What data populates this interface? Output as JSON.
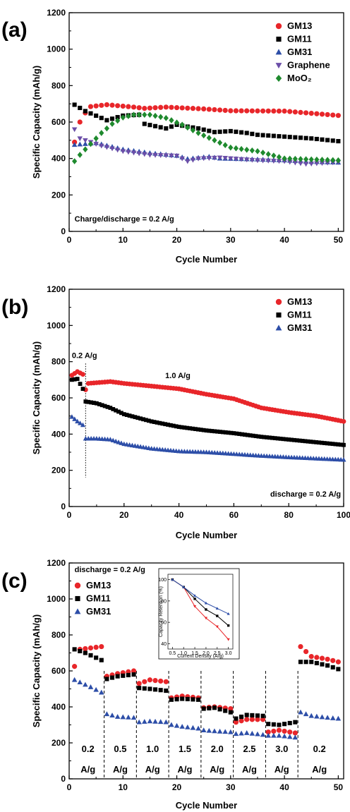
{
  "chart_data": [
    {
      "panel_label": "(a)",
      "type": "scatter",
      "xlabel": "Cycle Number",
      "ylabel": "Specific Capacity (mAh/g)",
      "xlim": [
        0,
        51
      ],
      "ylim": [
        0,
        1200
      ],
      "xticks": [
        0,
        10,
        20,
        30,
        40,
        50
      ],
      "yticks": [
        0,
        200,
        400,
        600,
        800,
        1000,
        1200
      ],
      "legend_position": "top-right",
      "annotations": [
        {
          "text": "Charge/discharge = 0.2 A/g",
          "x": 1,
          "y": 55
        }
      ],
      "series": [
        {
          "name": "GM13",
          "marker": "circle",
          "color": "#e8262a",
          "y_anchors": [
            [
              1,
              490
            ],
            [
              2,
              600
            ],
            [
              3,
              650
            ],
            [
              4,
              685
            ],
            [
              7,
              695
            ],
            [
              12,
              682
            ],
            [
              14,
              675
            ],
            [
              18,
              682
            ],
            [
              25,
              672
            ],
            [
              30,
              662
            ],
            [
              40,
              660
            ],
            [
              50,
              636
            ]
          ]
        },
        {
          "name": "GM11",
          "marker": "square",
          "color": "#000000",
          "y_anchors": [
            [
              1,
              695
            ],
            [
              3,
              660
            ],
            [
              7,
              610
            ],
            [
              10,
              635
            ],
            [
              13,
              640
            ],
            [
              14,
              590
            ],
            [
              18,
              565
            ],
            [
              20,
              585
            ],
            [
              24,
              565
            ],
            [
              27,
              545
            ],
            [
              30,
              550
            ],
            [
              33,
              540
            ],
            [
              35,
              530
            ],
            [
              40,
              520
            ],
            [
              45,
              510
            ],
            [
              50,
              495
            ]
          ]
        },
        {
          "name": "GM31",
          "marker": "triangle-up",
          "color": "#2d4ea8",
          "y_anchors": [
            [
              1,
              475
            ],
            [
              5,
              485
            ],
            [
              10,
              450
            ],
            [
              15,
              430
            ],
            [
              20,
              415
            ],
            [
              22,
              398
            ],
            [
              26,
              410
            ],
            [
              28,
              400
            ],
            [
              35,
              395
            ],
            [
              40,
              390
            ],
            [
              45,
              382
            ],
            [
              50,
              378
            ]
          ]
        },
        {
          "name": "Graphene",
          "marker": "triangle-down",
          "color": "#6b4ea8",
          "y_anchors": [
            [
              1,
              560
            ],
            [
              2,
              510
            ],
            [
              4,
              490
            ],
            [
              6,
              470
            ],
            [
              10,
              440
            ],
            [
              15,
              420
            ],
            [
              20,
              415
            ],
            [
              22,
              385
            ],
            [
              24,
              400
            ],
            [
              28,
              405
            ],
            [
              35,
              390
            ],
            [
              40,
              385
            ],
            [
              44,
              370
            ],
            [
              47,
              375
            ],
            [
              50,
              380
            ]
          ]
        },
        {
          "name": "MoO₂",
          "marker": "diamond",
          "color": "#1f8a2e",
          "y_anchors": [
            [
              1,
              385
            ],
            [
              2,
              420
            ],
            [
              4,
              480
            ],
            [
              6,
              540
            ],
            [
              8,
              590
            ],
            [
              10,
              625
            ],
            [
              12,
              640
            ],
            [
              15,
              640
            ],
            [
              18,
              622
            ],
            [
              21,
              585
            ],
            [
              24,
              540
            ],
            [
              27,
              500
            ],
            [
              30,
              460
            ],
            [
              35,
              440
            ],
            [
              40,
              400
            ],
            [
              45,
              395
            ],
            [
              50,
              390
            ]
          ]
        }
      ]
    },
    {
      "panel_label": "(b)",
      "type": "scatter",
      "xlabel": "Cycle Number",
      "ylabel": "Specific Capacity (mAh/g)",
      "xlim": [
        0,
        100
      ],
      "ylim": [
        0,
        1200
      ],
      "xticks": [
        0,
        20,
        40,
        60,
        80,
        100
      ],
      "yticks": [
        0,
        200,
        400,
        600,
        800,
        1000,
        1200
      ],
      "legend_position": "top-right",
      "vline": {
        "x": 6,
        "ymin": 160,
        "ymax": 790
      },
      "annotations": [
        {
          "text": "0.2 A/g",
          "x": 1,
          "y": 820
        },
        {
          "text": "1.0 A/g",
          "x": 35,
          "y": 710
        },
        {
          "text": "discharge = 0.2 A/g",
          "x": 99,
          "y": 55
        }
      ],
      "series": [
        {
          "name": "GM13",
          "marker": "circle",
          "color": "#e8262a",
          "y_anchors": [
            [
              1,
              725
            ],
            [
              3,
              745
            ],
            [
              5,
              730
            ],
            [
              6,
              645
            ],
            [
              7,
              680
            ],
            [
              15,
              690
            ],
            [
              20,
              680
            ],
            [
              30,
              665
            ],
            [
              40,
              650
            ],
            [
              50,
              620
            ],
            [
              60,
              595
            ],
            [
              70,
              545
            ],
            [
              80,
              520
            ],
            [
              90,
              500
            ],
            [
              100,
              470
            ]
          ]
        },
        {
          "name": "GM11",
          "marker": "square",
          "color": "#000000",
          "y_anchors": [
            [
              1,
              700
            ],
            [
              3,
              705
            ],
            [
              5,
              650
            ],
            [
              6,
              580
            ],
            [
              10,
              570
            ],
            [
              15,
              545
            ],
            [
              20,
              510
            ],
            [
              30,
              470
            ],
            [
              40,
              440
            ],
            [
              50,
              420
            ],
            [
              60,
              405
            ],
            [
              70,
              385
            ],
            [
              80,
              370
            ],
            [
              90,
              355
            ],
            [
              100,
              340
            ]
          ]
        },
        {
          "name": "GM31",
          "marker": "triangle-up",
          "color": "#2d4ea8",
          "y_anchors": [
            [
              1,
              495
            ],
            [
              3,
              470
            ],
            [
              5,
              450
            ],
            [
              6,
              375
            ],
            [
              10,
              375
            ],
            [
              15,
              370
            ],
            [
              20,
              345
            ],
            [
              30,
              320
            ],
            [
              40,
              305
            ],
            [
              50,
              300
            ],
            [
              60,
              290
            ],
            [
              70,
              280
            ],
            [
              80,
              272
            ],
            [
              90,
              265
            ],
            [
              100,
              258
            ]
          ]
        }
      ]
    },
    {
      "panel_label": "(c)",
      "type": "scatter",
      "xlabel": "Cycle Number",
      "ylabel": "Specific Capacity (mAh/g)",
      "xlim": [
        0,
        51
      ],
      "ylim": [
        0,
        1200
      ],
      "xticks": [
        0,
        10,
        20,
        30,
        40,
        50
      ],
      "yticks": [
        0,
        200,
        400,
        600,
        800,
        1000,
        1200
      ],
      "legend_position": "top-left",
      "annotations": [
        {
          "text": "discharge = 0.2 A/g",
          "x": 1,
          "y": 1150
        }
      ],
      "segment_dividers": [
        6.5,
        12.5,
        18.5,
        24.5,
        30.5,
        36.5,
        42.5
      ],
      "segment_labels": [
        {
          "rate": "0.2",
          "unit": "A/g",
          "x": 3.5
        },
        {
          "rate": "0.5",
          "unit": "A/g",
          "x": 9.5
        },
        {
          "rate": "1.0",
          "unit": "A/g",
          "x": 15.5
        },
        {
          "rate": "1.5",
          "unit": "A/g",
          "x": 21.5
        },
        {
          "rate": "2.0",
          "unit": "A/g",
          "x": 27.5
        },
        {
          "rate": "2.5",
          "unit": "A/g",
          "x": 33.5
        },
        {
          "rate": "3.0",
          "unit": "A/g",
          "x": 39.5
        },
        {
          "rate": "0.2",
          "unit": "A/g",
          "x": 46.5
        }
      ],
      "series": [
        {
          "name": "GM13",
          "marker": "circle",
          "color": "#e8262a",
          "y_anchors": [
            [
              1,
              625
            ],
            [
              2,
              720
            ],
            [
              6,
              735
            ],
            [
              7,
              570
            ],
            [
              9,
              585
            ],
            [
              12,
              600
            ],
            [
              13,
              530
            ],
            [
              15,
              550
            ],
            [
              18,
              540
            ],
            [
              19,
              450
            ],
            [
              21,
              460
            ],
            [
              24,
              450
            ],
            [
              25,
              395
            ],
            [
              27,
              400
            ],
            [
              30,
              390
            ],
            [
              31,
              315
            ],
            [
              33,
              330
            ],
            [
              36,
              330
            ],
            [
              37,
              260
            ],
            [
              39,
              270
            ],
            [
              42,
              255
            ],
            [
              43,
              735
            ],
            [
              45,
              680
            ],
            [
              48,
              665
            ],
            [
              50,
              650
            ]
          ]
        },
        {
          "name": "GM11",
          "marker": "square",
          "color": "#000000",
          "y_anchors": [
            [
              1,
              720
            ],
            [
              3,
              700
            ],
            [
              6,
              660
            ],
            [
              7,
              555
            ],
            [
              9,
              570
            ],
            [
              12,
              580
            ],
            [
              13,
              505
            ],
            [
              15,
              500
            ],
            [
              18,
              490
            ],
            [
              19,
              440
            ],
            [
              21,
              445
            ],
            [
              24,
              440
            ],
            [
              25,
              390
            ],
            [
              27,
              395
            ],
            [
              30,
              370
            ],
            [
              31,
              335
            ],
            [
              33,
              355
            ],
            [
              36,
              350
            ],
            [
              37,
              305
            ],
            [
              39,
              300
            ],
            [
              42,
              315
            ],
            [
              43,
              650
            ],
            [
              45,
              650
            ],
            [
              48,
              630
            ],
            [
              50,
              610
            ]
          ]
        },
        {
          "name": "GM31",
          "marker": "triangle-up",
          "color": "#2d4ea8",
          "y_anchors": [
            [
              1,
              550
            ],
            [
              4,
              510
            ],
            [
              6,
              480
            ],
            [
              7,
              360
            ],
            [
              9,
              345
            ],
            [
              12,
              340
            ],
            [
              13,
              315
            ],
            [
              15,
              320
            ],
            [
              18,
              315
            ],
            [
              19,
              300
            ],
            [
              21,
              290
            ],
            [
              24,
              280
            ],
            [
              25,
              270
            ],
            [
              27,
              265
            ],
            [
              30,
              260
            ],
            [
              31,
              250
            ],
            [
              33,
              255
            ],
            [
              36,
              245
            ],
            [
              37,
              240
            ],
            [
              39,
              240
            ],
            [
              42,
              230
            ],
            [
              43,
              370
            ],
            [
              45,
              350
            ],
            [
              48,
              340
            ],
            [
              50,
              335
            ]
          ]
        }
      ],
      "inset": {
        "type": "line",
        "xlabel": "Current Density (A/g)",
        "ylabel": "Capacity Retention (%)",
        "xlim": [
          0.3,
          3.2
        ],
        "ylim": [
          35,
          105
        ],
        "xticks": [
          "0.5",
          "1.0",
          "1.5",
          "2.0",
          "2.5",
          "3.0"
        ],
        "yticks": [
          "40",
          "60",
          "80",
          "100"
        ],
        "x": [
          0.5,
          1.0,
          1.5,
          2.0,
          2.5,
          3.0
        ],
        "series": [
          {
            "name": "GM13",
            "marker": "triangle-down",
            "color": "#e8262a",
            "values": [
              100,
              93,
              75,
              64,
              56,
              44
            ]
          },
          {
            "name": "GM11",
            "marker": "square",
            "color": "#000000",
            "values": [
              100,
              93,
              82,
              72,
              66,
              57
            ]
          },
          {
            "name": "GM31",
            "marker": "triangle-up",
            "color": "#2d4ea8",
            "values": [
              100,
              93,
              85,
              78,
              73,
              68
            ]
          }
        ]
      }
    }
  ]
}
